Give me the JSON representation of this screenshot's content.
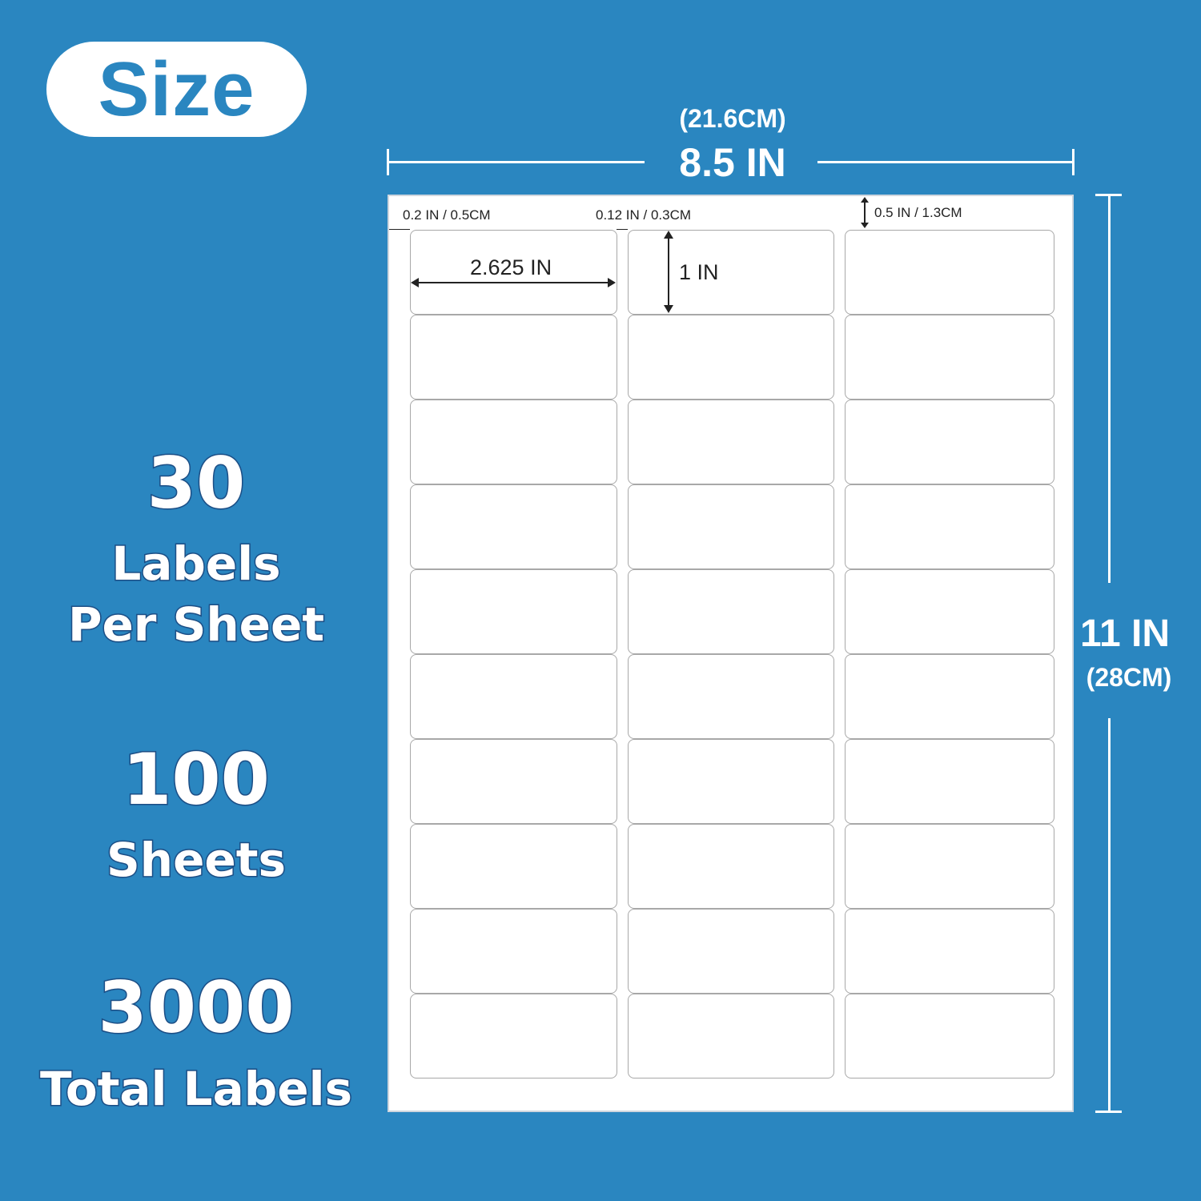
{
  "badge": {
    "title": "Size"
  },
  "stats": [
    {
      "number": "30",
      "caption_lines": [
        "Labels",
        "Per Sheet"
      ]
    },
    {
      "number": "100",
      "caption_lines": [
        "Sheets"
      ]
    },
    {
      "number": "3000",
      "caption_lines": [
        "Total Labels"
      ]
    }
  ],
  "sheet": {
    "width_in": "8.5 IN",
    "width_cm": "(21.6CM)",
    "height_in": "11 IN",
    "height_cm": "(28CM)",
    "rows": 10,
    "columns": 3,
    "side_margin": "0.2 IN / 0.5CM",
    "column_gap": "0.12 IN / 0.3CM",
    "top_margin": "0.5 IN / 1.3CM",
    "label_width": "2.625 IN",
    "label_height": "1 IN"
  },
  "colors": {
    "background": "#2a86c0",
    "outline": "#1d4f86",
    "sheet": "#ffffff"
  }
}
